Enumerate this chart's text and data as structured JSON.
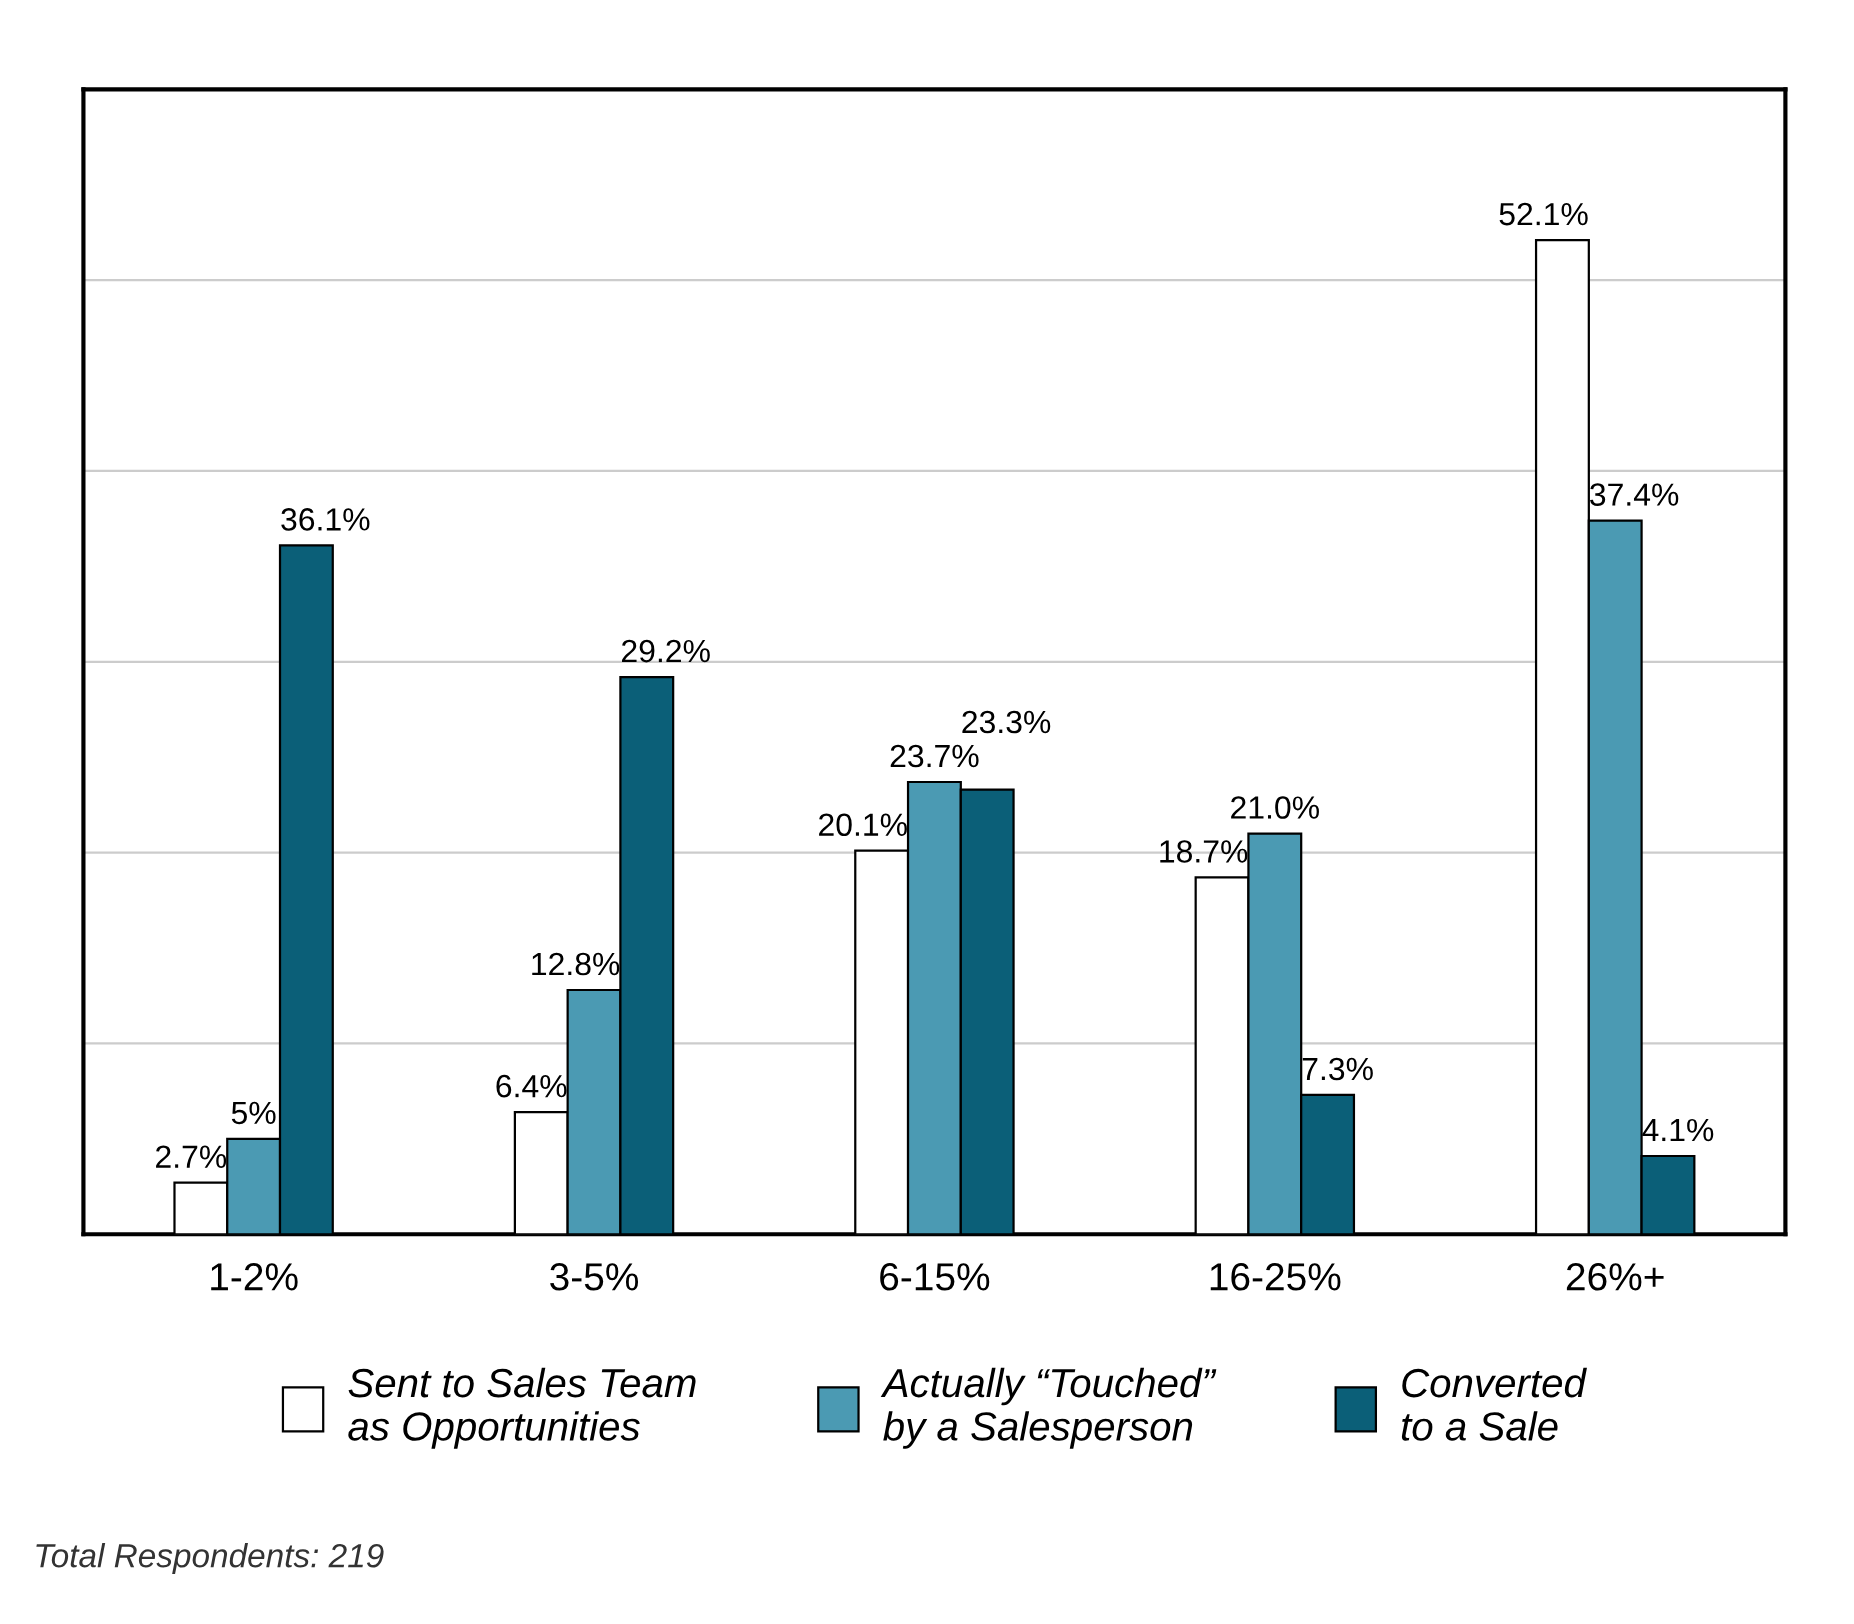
{
  "chart_data": {
    "type": "bar",
    "categories": [
      "1-2%",
      "3-5%",
      "6-15%",
      "16-25%",
      "26%+"
    ],
    "series": [
      {
        "name": "Sent to Sales Team\nas Opportunities",
        "color": "#ffffff",
        "values": [
          2.7,
          6.4,
          20.1,
          18.7,
          52.1
        ],
        "value_labels": [
          "2.7%",
          "6.4%",
          "20.1%",
          "18.7%",
          "52.1%"
        ]
      },
      {
        "name": "Actually “Touched”\nby a Salesperson",
        "color": "#4b9ab3",
        "values": [
          5,
          12.8,
          23.7,
          21.0,
          37.4
        ],
        "value_labels": [
          "5%",
          "12.8%",
          "23.7%",
          "21.0%",
          "37.4%"
        ]
      },
      {
        "name": "Converted\nto a Sale",
        "color": "#0b5f78",
        "values": [
          36.1,
          29.2,
          23.3,
          7.3,
          4.1
        ],
        "value_labels": [
          "36.1%",
          "29.2%",
          "23.3%",
          "7.3%",
          "4.1%"
        ]
      }
    ],
    "ylim": [
      0,
      60
    ],
    "yticks": [
      {
        "value": 0,
        "label": null
      },
      {
        "value": 10,
        "label": null
      },
      {
        "value": 20,
        "label": null
      },
      {
        "value": 30,
        "label": null
      },
      {
        "value": 40,
        "label": null
      },
      {
        "value": 50,
        "label": null
      },
      {
        "value": 60,
        "label": null
      }
    ],
    "tick_labels": "x",
    "grid": "y",
    "legend": "bottom",
    "annotations": [
      "Total Respondents: 219"
    ]
  }
}
